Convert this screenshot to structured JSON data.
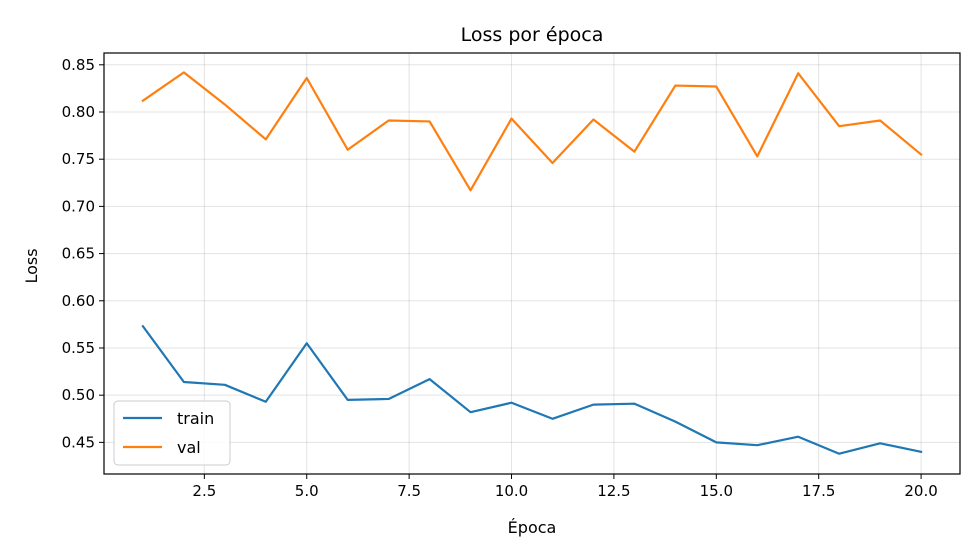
{
  "chart_data": {
    "type": "line",
    "title": "Loss por época",
    "xlabel": "Época",
    "ylabel": "Loss",
    "xlim": [
      0.05,
      20.95
    ],
    "ylim": [
      0.4165,
      0.8625
    ],
    "x_ticks": [
      2.5,
      5.0,
      7.5,
      10.0,
      12.5,
      15.0,
      17.5,
      20.0
    ],
    "x_tick_labels": [
      "2.5",
      "5.0",
      "7.5",
      "10.0",
      "12.5",
      "15.0",
      "17.5",
      "20.0"
    ],
    "y_ticks": [
      0.45,
      0.5,
      0.55,
      0.6,
      0.65,
      0.7,
      0.75,
      0.8,
      0.85
    ],
    "y_tick_labels": [
      "0.45",
      "0.50",
      "0.55",
      "0.60",
      "0.65",
      "0.70",
      "0.75",
      "0.80",
      "0.85"
    ],
    "grid": true,
    "legend_position": "lower-left",
    "x": [
      1,
      2,
      3,
      4,
      5,
      6,
      7,
      8,
      9,
      10,
      11,
      12,
      13,
      14,
      15,
      16,
      17,
      18,
      19,
      20
    ],
    "series": [
      {
        "name": "train",
        "color": "#1f77b4",
        "values": [
          0.573,
          0.514,
          0.511,
          0.493,
          0.555,
          0.495,
          0.496,
          0.517,
          0.482,
          0.492,
          0.475,
          0.49,
          0.491,
          0.472,
          0.45,
          0.447,
          0.456,
          0.438,
          0.449,
          0.44
        ]
      },
      {
        "name": "val",
        "color": "#ff7f0e",
        "values": [
          0.812,
          0.842,
          0.808,
          0.771,
          0.836,
          0.76,
          0.791,
          0.79,
          0.717,
          0.793,
          0.746,
          0.792,
          0.758,
          0.828,
          0.827,
          0.753,
          0.841,
          0.785,
          0.791,
          0.755
        ]
      }
    ]
  }
}
